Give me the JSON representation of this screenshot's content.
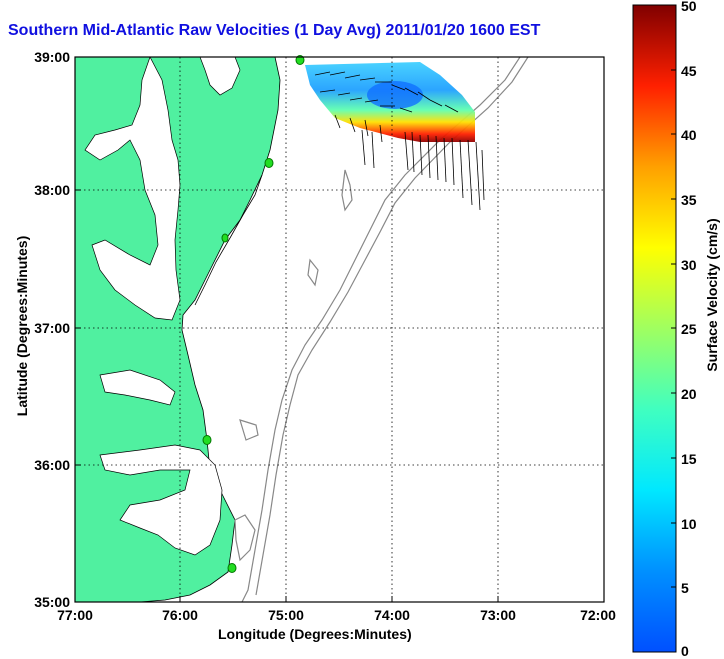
{
  "title": "Southern Mid-Atlantic Raw Velocities (1 Day Avg) 2011/01/20 1600 EST",
  "x_axis": {
    "label": "Longitude (Degrees:Minutes)",
    "ticks": [
      "77:00",
      "76:00",
      "75:00",
      "74:00",
      "73:00",
      "72:00"
    ],
    "range_deg": [
      -77,
      -72
    ]
  },
  "y_axis": {
    "label": "Latitude (Degrees:Minutes)",
    "ticks": [
      "39:00",
      "38:00",
      "37:00",
      "36:00",
      "35:00"
    ],
    "range_deg": [
      35,
      39
    ]
  },
  "colorbar": {
    "label": "Surface Velocity (cm/s)",
    "ticks": [
      "50",
      "45",
      "40",
      "35",
      "30",
      "25",
      "20",
      "15",
      "10",
      "5",
      "0"
    ],
    "range": [
      0,
      50
    ],
    "colormap": "jet"
  },
  "colors": {
    "land": "#50f0a0",
    "title": "#1010e0",
    "station": "#22dd22",
    "bathymetry": "#888888"
  },
  "stations": [
    "station-1",
    "station-2",
    "station-3",
    "station-4",
    "station-5"
  ],
  "grid": "dotted"
}
